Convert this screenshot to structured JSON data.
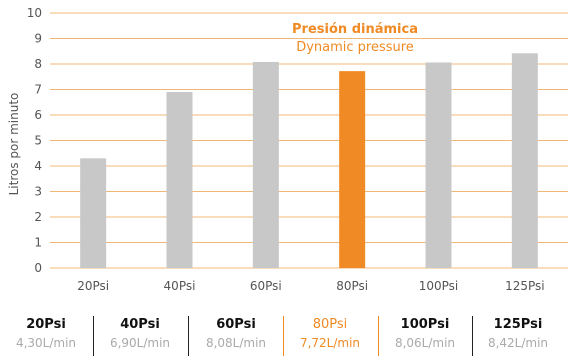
{
  "chart_data": {
    "type": "bar",
    "title": "",
    "legend": [
      "Presión dinámica",
      "Dynamic pressure"
    ],
    "xlabel": "",
    "ylabel": "Litros por minuto",
    "ylim": [
      0,
      10
    ],
    "yticks": [
      0,
      1,
      2,
      3,
      4,
      5,
      6,
      7,
      8,
      9,
      10
    ],
    "categories": [
      "20Psi",
      "40Psi",
      "60Psi",
      "80Psi",
      "100Psi",
      "125Psi"
    ],
    "values": [
      4.3,
      6.9,
      8.08,
      7.72,
      8.06,
      8.42
    ],
    "highlight_index": 3,
    "grid": "horizontal",
    "colors": {
      "bar": "#c8c8c8",
      "highlight": "#f08a24",
      "grid": "#f0b878",
      "text": "#555555"
    }
  },
  "stats": [
    {
      "label": "20Psi",
      "value": "4,30L/min"
    },
    {
      "label": "40Psi",
      "value": "6,90L/min"
    },
    {
      "label": "60Psi",
      "value": "8,08L/min"
    },
    {
      "label": "80Psi",
      "value": "7,72L/min",
      "highlight": true
    },
    {
      "label": "100Psi",
      "value": "8,06L/min"
    },
    {
      "label": "125Psi",
      "value": "8,42L/min"
    }
  ]
}
